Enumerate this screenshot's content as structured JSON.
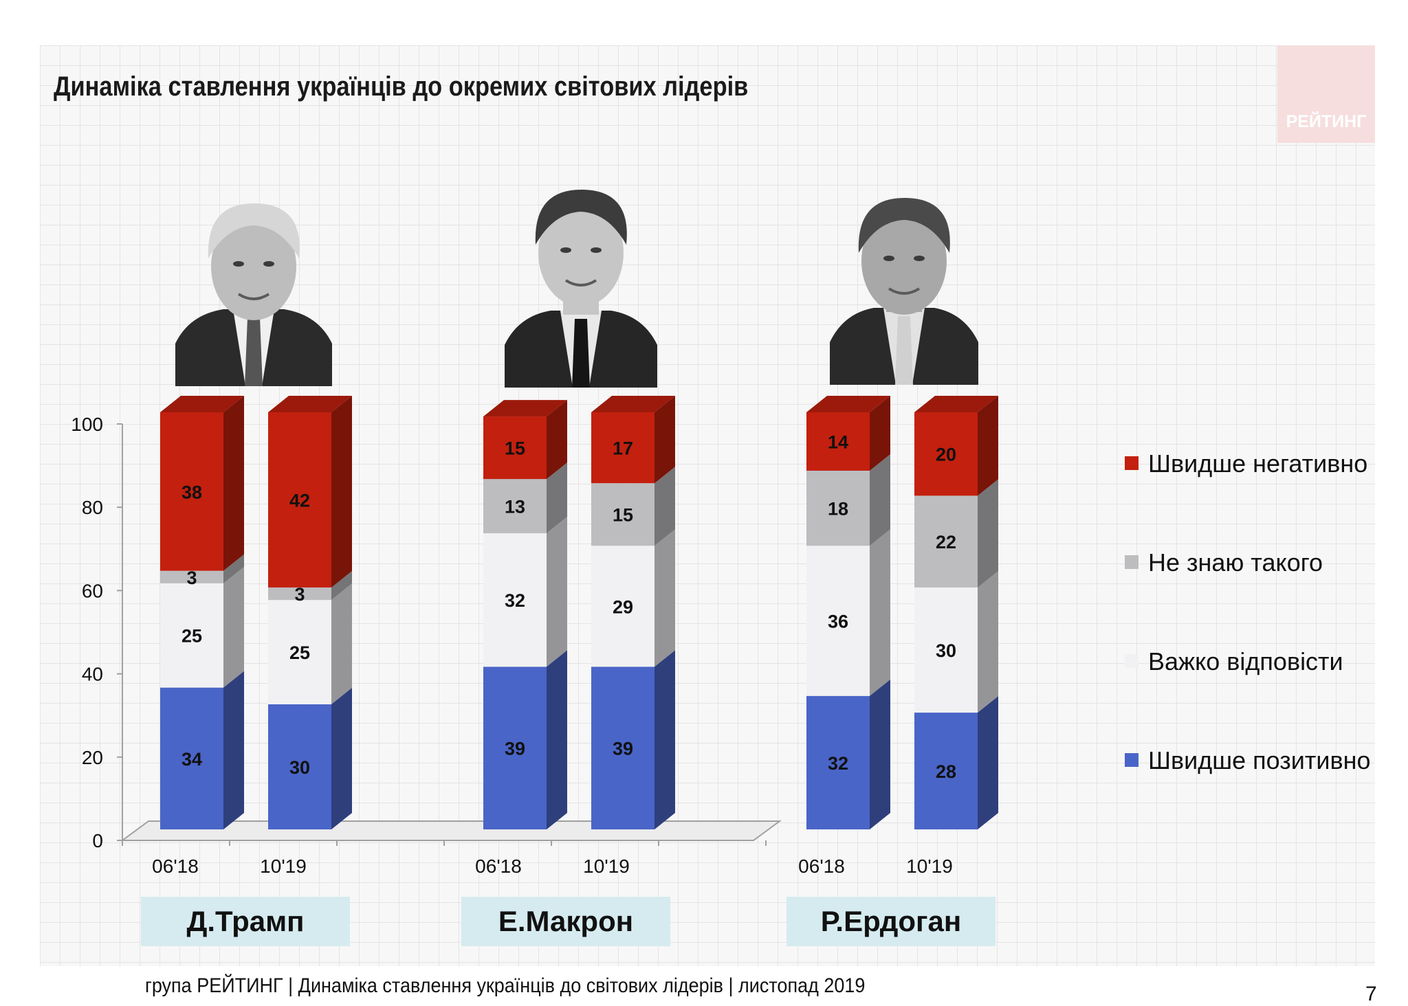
{
  "header": {
    "title": "Динаміка ставлення українців до окремих світових лідерів"
  },
  "logo": {
    "text": "РЕЙТИНГ"
  },
  "chart_data": {
    "type": "bar",
    "stacked": true,
    "title": "Динаміка ставлення українців до окремих світових лідерів",
    "ylim": [
      0,
      100
    ],
    "yticks": [
      0,
      20,
      40,
      60,
      80,
      100
    ],
    "groups": [
      "Д.Трамп",
      "Е.Макрон",
      "Р.Ердоган"
    ],
    "categories": [
      "06'18",
      "10'19",
      "06'18",
      "10'19",
      "06'18",
      "10'19"
    ],
    "legend_position": "right",
    "series": [
      {
        "name": "Швидше позитивно",
        "color": "#4a65c8",
        "values": [
          34,
          30,
          39,
          39,
          32,
          28
        ]
      },
      {
        "name": "Важко відповісти",
        "color": "#f1f1f3",
        "values": [
          25,
          25,
          32,
          29,
          36,
          30
        ]
      },
      {
        "name": "Не знаю такого",
        "color": "#bdbdc0",
        "values": [
          3,
          3,
          13,
          15,
          18,
          22
        ]
      },
      {
        "name": "Швидше негативно",
        "color": "#c3200f",
        "values": [
          38,
          42,
          15,
          17,
          14,
          20
        ]
      }
    ],
    "legend_order": [
      "Швидше негативно",
      "Не знаю такого",
      "Важко відповісти",
      "Швидше позитивно"
    ]
  },
  "leaders": [
    {
      "name": "Д.Трамп",
      "photo_icon": "portrait-trump"
    },
    {
      "name": "Е.Макрон",
      "photo_icon": "portrait-macron"
    },
    {
      "name": "Р.Ердоган",
      "photo_icon": "portrait-erdogan"
    }
  ],
  "footer": {
    "text": "група РЕЙТИНГ | Динаміка ставлення українців до світових лідерів  | листопад 2019",
    "page_number": "7"
  }
}
